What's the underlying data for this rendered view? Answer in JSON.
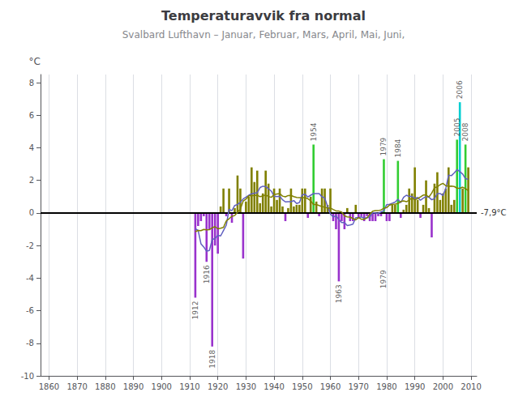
{
  "chart_data": {
    "type": "bar",
    "title": "Temperaturavvik fra normal",
    "subtitle": "Svalbard Lufthavn – Januar, Februar, Mars, April, Mai, Juni,",
    "ylabel": "°C",
    "x": [
      1912,
      1913,
      1914,
      1915,
      1916,
      1917,
      1918,
      1919,
      1920,
      1921,
      1922,
      1923,
      1924,
      1925,
      1926,
      1927,
      1928,
      1929,
      1930,
      1931,
      1932,
      1933,
      1934,
      1935,
      1936,
      1937,
      1938,
      1939,
      1940,
      1941,
      1942,
      1943,
      1944,
      1945,
      1946,
      1947,
      1948,
      1949,
      1950,
      1951,
      1952,
      1953,
      1954,
      1955,
      1956,
      1957,
      1958,
      1959,
      1960,
      1961,
      1962,
      1963,
      1964,
      1965,
      1966,
      1967,
      1968,
      1969,
      1970,
      1971,
      1972,
      1973,
      1974,
      1975,
      1976,
      1977,
      1978,
      1979,
      1980,
      1981,
      1982,
      1983,
      1984,
      1985,
      1986,
      1987,
      1988,
      1989,
      1990,
      1991,
      1992,
      1993,
      1994,
      1995,
      1996,
      1997,
      1998,
      1999,
      2000,
      2001,
      2002,
      2003,
      2004,
      2005,
      2006,
      2007,
      2008,
      2009
    ],
    "series": [
      {
        "type": "bar",
        "values": [
          -5.2,
          -0.8,
          -0.5,
          -0.2,
          -3.0,
          -1.0,
          -8.2,
          -2.0,
          -2.5,
          0.4,
          1.5,
          -0.2,
          1.5,
          -0.6,
          0.3,
          2.3,
          1.5,
          -2.8,
          0.7,
          1.0,
          2.8,
          1.9,
          2.6,
          0.6,
          1.2,
          2.6,
          1.8,
          0.4,
          1.5,
          0.8,
          1.5,
          0.4,
          -0.5,
          0.3,
          1.5,
          0.4,
          0.5,
          0.5,
          1.5,
          1.5,
          -0.3,
          1.0,
          4.2,
          0.7,
          -0.2,
          1.5,
          1.5,
          0.5,
          1.5,
          -0.5,
          -1.0,
          -4.2,
          -0.5,
          -1.0,
          0.3,
          -0.5,
          -0.5,
          0.5,
          -0.3,
          -0.2,
          -0.5,
          -0.2,
          -0.5,
          -0.5,
          -0.5,
          -0.2,
          -0.2,
          3.3,
          -0.5,
          -0.5,
          0.5,
          0.5,
          3.2,
          -0.3,
          0.2,
          0.5,
          1.5,
          1.2,
          2.8,
          0.8,
          -0.3,
          0.5,
          2.0,
          0.3,
          -1.5,
          1.8,
          2.5,
          0.8,
          1.2,
          1.5,
          2.8,
          0.5,
          0.8,
          4.5,
          6.8,
          1.5,
          4.2,
          2.8
        ],
        "colors": [
          "#9932CC",
          "#9932CC",
          "#9932CC",
          "#9932CC",
          "#9932CC",
          "#9932CC",
          "#9932CC",
          "#9932CC",
          "#9932CC",
          "#808000",
          "#808000",
          "#9932CC",
          "#808000",
          "#9932CC",
          "#808000",
          "#808000",
          "#808000",
          "#9932CC",
          "#808000",
          "#808000",
          "#808000",
          "#808000",
          "#808000",
          "#808000",
          "#808000",
          "#808000",
          "#808000",
          "#808000",
          "#808000",
          "#808000",
          "#808000",
          "#808000",
          "#9932CC",
          "#808000",
          "#808000",
          "#808000",
          "#808000",
          "#808000",
          "#808000",
          "#808000",
          "#9932CC",
          "#808000",
          "#32CD32",
          "#808000",
          "#9932CC",
          "#808000",
          "#808000",
          "#808000",
          "#808000",
          "#9932CC",
          "#9932CC",
          "#9932CC",
          "#9932CC",
          "#9932CC",
          "#808000",
          "#9932CC",
          "#9932CC",
          "#808000",
          "#9932CC",
          "#9932CC",
          "#9932CC",
          "#9932CC",
          "#9932CC",
          "#9932CC",
          "#9932CC",
          "#9932CC",
          "#9932CC",
          "#32CD32",
          "#9932CC",
          "#9932CC",
          "#808000",
          "#808000",
          "#32CD32",
          "#9932CC",
          "#808000",
          "#808000",
          "#808000",
          "#808000",
          "#808000",
          "#808000",
          "#9932CC",
          "#808000",
          "#808000",
          "#808000",
          "#9932CC",
          "#808000",
          "#808000",
          "#808000",
          "#808000",
          "#808000",
          "#808000",
          "#808000",
          "#808000",
          "#32CD32",
          "#00CED1",
          "#808000",
          "#32CD32",
          "#808000"
        ]
      },
      {
        "type": "line",
        "color": "#6060c0",
        "values": [
          -0.97,
          -1.07,
          -1.89,
          -2.09,
          -2.34,
          -2.3,
          -1.63,
          -1.57,
          -1.37,
          -1.41,
          -1.08,
          -0.75,
          0.22,
          0.14,
          0.46,
          0.52,
          0.65,
          0.86,
          0.97,
          1.09,
          1.18,
          1.21,
          1.24,
          1.56,
          1.64,
          1.62,
          1.49,
          1.34,
          1.03,
          1.0,
          1.03,
          0.81,
          0.68,
          0.69,
          0.69,
          0.76,
          0.58,
          0.64,
          1.11,
          1.15,
          0.98,
          1.09,
          1.19,
          1.19,
          1.19,
          0.99,
          0.92,
          0.4,
          -0.07,
          -0.24,
          -0.19,
          -0.39,
          -0.59,
          -0.59,
          -0.77,
          -0.74,
          -0.69,
          -0.29,
          -0.29,
          -0.24,
          -0.32,
          -0.29,
          -0.26,
          0.02,
          0.0,
          -0.03,
          0.07,
          0.14,
          0.51,
          0.53,
          0.6,
          0.67,
          0.84,
          0.63,
          0.96,
          1.09,
          1.01,
          1.01,
          0.89,
          0.95,
          0.78,
          0.91,
          1.01,
          0.97,
          0.81,
          0.88,
          1.19,
          1.19,
          1.07,
          1.49,
          2.32,
          2.29,
          2.46,
          2.66,
          2.54,
          2.39,
          2.11,
          2.06
        ]
      },
      {
        "type": "line",
        "color": "#808000",
        "values": [
          -1.15,
          -1.075,
          -1.085,
          -1.01,
          -1.04,
          -1.025,
          -0.91,
          -0.835,
          -0.975,
          -0.94,
          -0.89,
          -0.49,
          -0.355,
          -0.2,
          -0.16,
          0.05,
          0.23,
          0.73,
          0.85,
          1.05,
          1.07,
          1.07,
          1.1,
          1.0,
          1.045,
          1.105,
          1.01,
          0.96,
          1.125,
          1.165,
          1.19,
          1.035,
          0.99,
          1.07,
          1.075,
          1.005,
          0.95,
          0.935,
          0.94,
          0.94,
          0.875,
          0.75,
          0.52,
          0.52,
          0.455,
          0.395,
          0.35,
          0.3,
          0.3,
          0.21,
          0.125,
          0.115,
          0.055,
          -0.18,
          -0.24,
          -0.255,
          -0.34,
          -0.425,
          -0.285,
          -0.385,
          -0.385,
          -0.31,
          -0.075,
          0.11,
          0.145,
          0.14,
          0.19,
          0.29,
          0.325,
          0.48,
          0.53,
          0.54,
          0.575,
          0.7,
          0.74,
          0.69,
          0.79,
          0.925,
          0.8,
          0.885,
          0.985,
          1.1,
          1.1,
          0.98,
          1.22,
          1.55,
          1.6,
          1.735,
          1.815,
          1.675,
          1.635,
          1.65,
          1.625,
          1.525,
          1.51,
          1.585,
          1.495,
          1.37
        ]
      }
    ],
    "xlim": [
      1857,
      2012
    ],
    "xticks": [
      1860,
      1870,
      1880,
      1890,
      1900,
      1910,
      1920,
      1930,
      1940,
      1950,
      1960,
      1970,
      1980,
      1990,
      2000,
      2010
    ],
    "ylim": [
      -10.0,
      8.5
    ],
    "yticks": [
      -10,
      -8,
      -6,
      -4,
      -2,
      0,
      2,
      4,
      6,
      8
    ],
    "grid": "x",
    "annotations": [
      {
        "x": 1912,
        "y": -5.2,
        "text": "1912"
      },
      {
        "x": 1916,
        "y": -3.0,
        "text": "1916"
      },
      {
        "x": 1918,
        "y": -8.2,
        "text": "1918"
      },
      {
        "x": 1954,
        "y": 4.2,
        "text": "1954"
      },
      {
        "x": 1963,
        "y": -4.2,
        "text": "1963"
      },
      {
        "x": 1979,
        "y": 3.3,
        "text": "1979"
      },
      {
        "x": 1979,
        "y": -3.3,
        "text": "1979"
      },
      {
        "x": 1984,
        "y": 3.2,
        "text": "1984"
      },
      {
        "x": 2005,
        "y": 4.5,
        "text": "2005"
      },
      {
        "x": 2006,
        "y": 6.8,
        "text": "2006"
      },
      {
        "x": 2008,
        "y": 4.2,
        "text": "2008"
      },
      {
        "y": 0,
        "text": "-7,9°C"
      }
    ]
  }
}
